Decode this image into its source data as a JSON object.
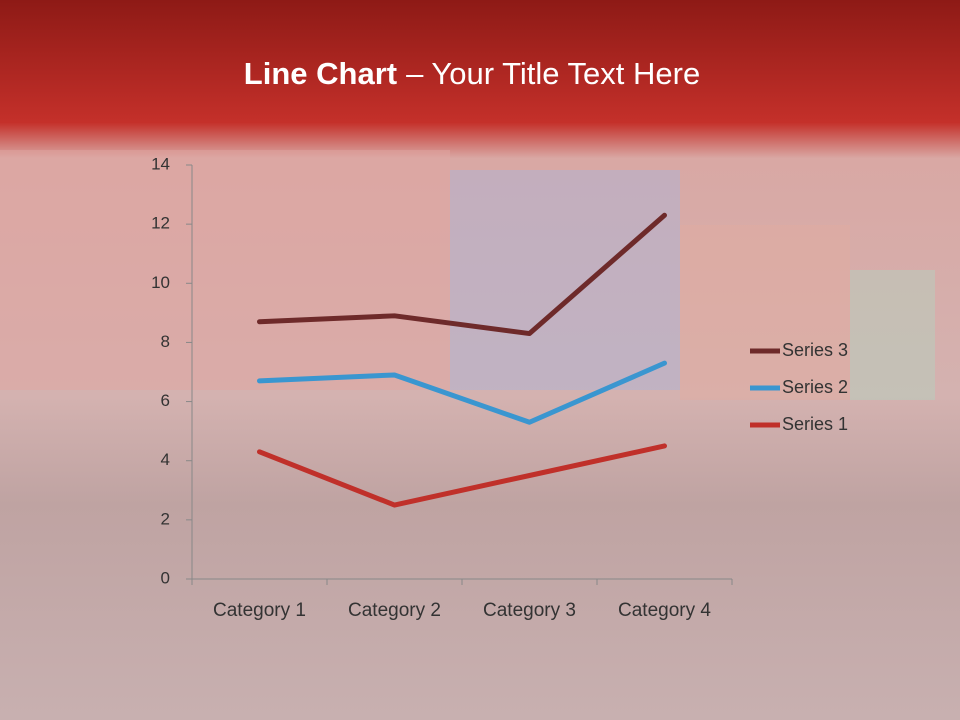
{
  "chart_data": {
    "type": "line",
    "stacked": true,
    "title": [
      "Line Chart",
      "– Your Title Text Here"
    ],
    "categories": [
      "Category 1",
      "Category 2",
      "Category 3",
      "Category 4"
    ],
    "series": [
      {
        "name": "Series 1",
        "color": "#c0302a",
        "values": [
          4.3,
          2.5,
          3.5,
          4.5
        ]
      },
      {
        "name": "Series 2",
        "color": "#3a96d0",
        "values": [
          2.4,
          4.4,
          1.8,
          2.8
        ]
      },
      {
        "name": "Series 3",
        "color": "#6e2a2a",
        "values": [
          2,
          2,
          3,
          5
        ]
      }
    ],
    "ylim": [
      0,
      14
    ],
    "yticks": [
      0,
      2,
      4,
      6,
      8,
      10,
      12,
      14
    ],
    "grid": false,
    "legend": "right"
  }
}
